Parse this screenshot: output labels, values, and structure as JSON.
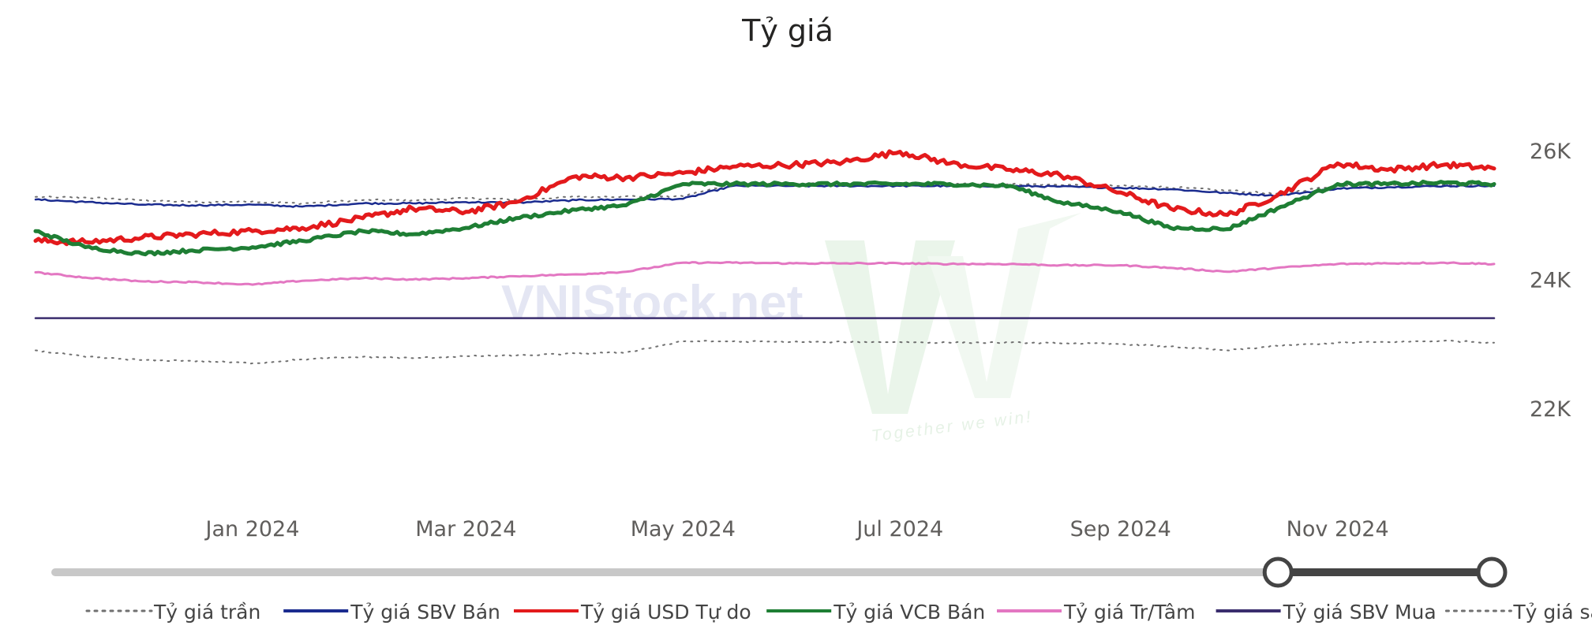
{
  "chart_data": {
    "type": "line",
    "title": "Tỷ giá",
    "xlabel": "",
    "ylabel": "",
    "x_ticks": [
      "Jan 2024",
      "Mar 2024",
      "May 2024",
      "Jul 2024",
      "Sep 2024",
      "Nov 2024"
    ],
    "y_ticks": [
      "22K",
      "24K",
      "26K"
    ],
    "y_tick_values": [
      22000,
      24000,
      26000
    ],
    "ylim": [
      21000,
      26500
    ],
    "x_dates": [
      "2023-11-01",
      "2023-11-15",
      "2023-12-01",
      "2023-12-15",
      "2024-01-01",
      "2024-01-15",
      "2024-02-01",
      "2024-02-15",
      "2024-03-01",
      "2024-03-15",
      "2024-04-01",
      "2024-04-15",
      "2024-05-01",
      "2024-05-15",
      "2024-06-01",
      "2024-06-15",
      "2024-07-01",
      "2024-07-15",
      "2024-08-01",
      "2024-08-15",
      "2024-09-01",
      "2024-09-15",
      "2024-10-01",
      "2024-10-15",
      "2024-11-01",
      "2024-11-15",
      "2024-12-01",
      "2024-12-15"
    ],
    "xlim": [
      "2023-11-01",
      "2024-12-15"
    ],
    "grid": false,
    "legend_position": "bottom",
    "slider": {
      "visible": true,
      "range_start": "2024-10-15",
      "range_end": "2024-12-15"
    },
    "watermark": {
      "text": "VNIStock.net",
      "tagline": "Together we win!"
    },
    "series": [
      {
        "name": "Tỷ giá trần",
        "color": "#707070",
        "style": "dotted",
        "values": [
          25280,
          25270,
          25230,
          25200,
          25210,
          25180,
          25230,
          25230,
          25260,
          25240,
          25280,
          25290,
          25290,
          25480,
          25480,
          25480,
          25480,
          25480,
          25480,
          25470,
          25450,
          25430,
          25380,
          25330,
          25450,
          25460,
          25470,
          25470
        ]
      },
      {
        "name": "Tỷ giá SBV Bán",
        "color": "#1a2b8f",
        "style": "solid",
        "values": [
          25240,
          25200,
          25160,
          25150,
          25160,
          25130,
          25180,
          25180,
          25200,
          25190,
          25230,
          25240,
          25250,
          25450,
          25450,
          25450,
          25450,
          25450,
          25450,
          25440,
          25420,
          25400,
          25340,
          25300,
          25410,
          25430,
          25450,
          25450
        ]
      },
      {
        "name": "Tỷ giá USD Tự do",
        "color": "#e31a1c",
        "style": "solid",
        "values": [
          24600,
          24580,
          24650,
          24700,
          24750,
          24800,
          24950,
          25100,
          25050,
          25200,
          25600,
          25580,
          25650,
          25750,
          25780,
          25820,
          25980,
          25800,
          25700,
          25620,
          25350,
          25100,
          25000,
          25300,
          25800,
          25700,
          25780,
          25720
        ]
      },
      {
        "name": "Tỷ giá VCB Bán",
        "color": "#1e7e34",
        "style": "solid",
        "values": [
          24750,
          24500,
          24400,
          24450,
          24500,
          24600,
          24750,
          24700,
          24800,
          24950,
          25080,
          25150,
          25480,
          25480,
          25480,
          25480,
          25480,
          25480,
          25450,
          25200,
          25050,
          24800,
          24780,
          25100,
          25480,
          25480,
          25500,
          25480
        ]
      },
      {
        "name": "Tỷ giá Tr/Tâm",
        "color": "#e377c2",
        "style": "solid",
        "values": [
          24110,
          24030,
          23970,
          23960,
          23920,
          23980,
          24020,
          24000,
          24020,
          24050,
          24080,
          24120,
          24260,
          24260,
          24250,
          24250,
          24250,
          24240,
          24240,
          24220,
          24220,
          24180,
          24120,
          24180,
          24240,
          24250,
          24260,
          24240
        ]
      },
      {
        "name": "Tỷ giá SBV Mua",
        "color": "#3a2d6d",
        "style": "solid",
        "values": [
          23400,
          23400,
          23400,
          23400,
          23400,
          23400,
          23400,
          23400,
          23400,
          23400,
          23400,
          23400,
          23400,
          23400,
          23400,
          23400,
          23400,
          23400,
          23400,
          23400,
          23400,
          23400,
          23400,
          23400,
          23400,
          23400,
          23400,
          23400
        ]
      },
      {
        "name": "Tỷ giá sàn",
        "color": "#707070",
        "style": "dotted",
        "values": [
          22900,
          22800,
          22750,
          22740,
          22700,
          22760,
          22800,
          22780,
          22810,
          22820,
          22850,
          22870,
          23040,
          23040,
          23030,
          23030,
          23030,
          23020,
          23020,
          23010,
          23000,
          22960,
          22900,
          22970,
          23020,
          23030,
          23050,
          23020
        ]
      }
    ]
  }
}
